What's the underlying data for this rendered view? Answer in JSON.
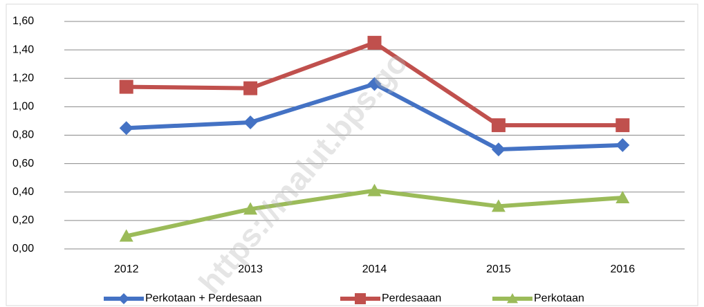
{
  "chart_data": {
    "type": "line",
    "watermark": "https://malut.bps.go",
    "categories": [
      "2012",
      "2013",
      "2014",
      "2015",
      "2016"
    ],
    "series": [
      {
        "name": "Perkotaan + Perdesaan",
        "color": "#4472c4",
        "marker": "diamond",
        "values": [
          0.85,
          0.89,
          1.16,
          0.7,
          0.73
        ]
      },
      {
        "name": "Perdesaaan",
        "color": "#c0504d",
        "marker": "square",
        "values": [
          1.14,
          1.13,
          1.45,
          0.87,
          0.87
        ]
      },
      {
        "name": "Perkotaan",
        "color": "#9bbb59",
        "marker": "triangle",
        "values": [
          0.09,
          0.28,
          0.41,
          0.3,
          0.36
        ]
      }
    ],
    "ylim": [
      0,
      1.6
    ],
    "yticks": [
      {
        "value": 0,
        "label": "0,00"
      },
      {
        "value": 0.2,
        "label": "0,20"
      },
      {
        "value": 0.4,
        "label": "0,40"
      },
      {
        "value": 0.6,
        "label": "0,60"
      },
      {
        "value": 0.8,
        "label": "0,80"
      },
      {
        "value": 1.0,
        "label": "1,00"
      },
      {
        "value": 1.2,
        "label": "1,20"
      },
      {
        "value": 1.4,
        "label": "1,40"
      },
      {
        "value": 1.6,
        "label": "1,60"
      }
    ],
    "grid": true,
    "legend": "bottom"
  }
}
